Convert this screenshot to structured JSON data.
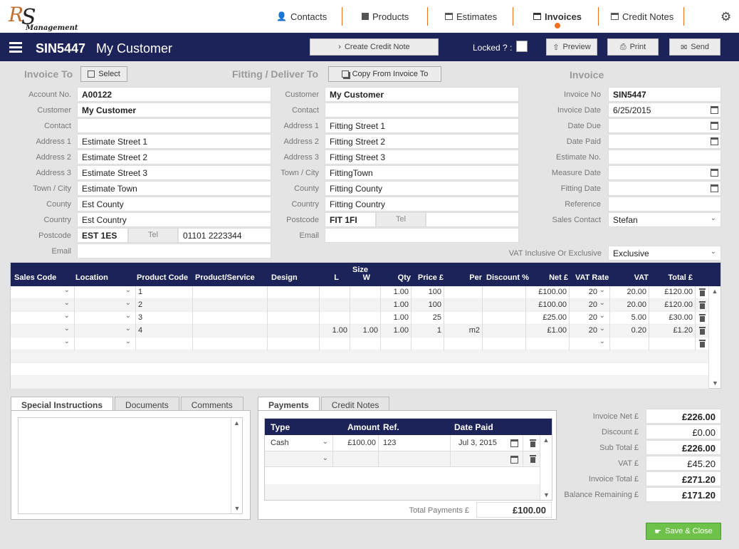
{
  "nav": {
    "items": [
      {
        "label": "Contacts"
      },
      {
        "label": "Products"
      },
      {
        "label": "Estimates"
      },
      {
        "label": "Invoices"
      },
      {
        "label": "Credit Notes"
      }
    ],
    "active_color": "#f07020"
  },
  "logo": {
    "letters": "RS",
    "sub": "Management"
  },
  "titlebar": {
    "doc_no": "SIN5447",
    "customer": "My Customer",
    "create_credit_note": "Create Credit Note",
    "locked_label": "Locked ? :",
    "preview": "Preview",
    "print": "Print",
    "send": "Send",
    "bg_color": "#1c2358"
  },
  "invoice_to": {
    "heading": "Invoice To",
    "select_btn": "Select",
    "fields": [
      {
        "label": "Account No.",
        "value": "A00122"
      },
      {
        "label": "Customer",
        "value": "My Customer"
      },
      {
        "label": "Contact",
        "value": ""
      },
      {
        "label": "Address 1",
        "value": "Estimate Street 1"
      },
      {
        "label": "Address 2",
        "value": "Estimate Street 2"
      },
      {
        "label": "Address 3",
        "value": "Estimate Street 3"
      },
      {
        "label": "Town / City",
        "value": "Estimate Town"
      },
      {
        "label": "County",
        "value": "Est County"
      },
      {
        "label": "Country",
        "value": "Est Country"
      }
    ],
    "postcode_label": "Postcode",
    "postcode": "EST 1ES",
    "tel_label": "Tel",
    "tel": "01101 2223344",
    "email_label": "Email",
    "email": ""
  },
  "fitting": {
    "heading": "Fitting / Deliver To",
    "copy_btn": "Copy From Invoice To",
    "fields": [
      {
        "label": "Customer",
        "value": "My Customer"
      },
      {
        "label": "Contact",
        "value": ""
      },
      {
        "label": "Address 1",
        "value": "Fitting Street 1"
      },
      {
        "label": "Address 2",
        "value": "Fitting Street 2"
      },
      {
        "label": "Address 3",
        "value": "Fitting Street 3"
      },
      {
        "label": "Town / City",
        "value": "FittingTown"
      },
      {
        "label": "County",
        "value": "Fitting County"
      },
      {
        "label": "Country",
        "value": "Fitting Country"
      }
    ],
    "postcode_label": "Postcode",
    "postcode": "FIT 1FI",
    "tel_label": "Tel",
    "tel": "",
    "email_label": "Email",
    "email": ""
  },
  "invoice": {
    "heading": "Invoice",
    "fields": [
      {
        "label": "Invoice No",
        "value": "SIN5447"
      },
      {
        "label": "Invoice Date",
        "value": "6/25/2015"
      },
      {
        "label": "Date Due",
        "value": ""
      },
      {
        "label": "Date Paid",
        "value": ""
      },
      {
        "label": "Estimate No.",
        "value": ""
      },
      {
        "label": "Measure Date",
        "value": ""
      },
      {
        "label": "Fitting Date",
        "value": ""
      },
      {
        "label": "Reference",
        "value": ""
      },
      {
        "label": "Sales Contact",
        "value": "Stefan"
      }
    ],
    "vat_label": "VAT Inclusive Or Exclusive",
    "vat_value": "Exclusive"
  },
  "grid": {
    "size_label": "Size",
    "headers": [
      "Sales Code",
      "Location",
      "Product Code",
      "Product/Service",
      "Design",
      "L",
      "W",
      "Qty",
      "Price £",
      "Per",
      "Discount %",
      "Net £",
      "VAT Rate",
      "VAT",
      "Total £"
    ],
    "rows": [
      {
        "product_code": "1",
        "l": "",
        "w": "",
        "qty": "1.00",
        "price": "100",
        "per": "",
        "net": "£100.00",
        "vat_rate": "20",
        "vat": "20.00",
        "total": "£120.00"
      },
      {
        "product_code": "2",
        "l": "",
        "w": "",
        "qty": "1.00",
        "price": "100",
        "per": "",
        "net": "£100.00",
        "vat_rate": "20",
        "vat": "20.00",
        "total": "£120.00"
      },
      {
        "product_code": "3",
        "l": "",
        "w": "",
        "qty": "1.00",
        "price": "25",
        "per": "",
        "net": "£25.00",
        "vat_rate": "20",
        "vat": "5.00",
        "total": "£30.00"
      },
      {
        "product_code": "4",
        "l": "1.00",
        "w": "1.00",
        "qty": "1.00",
        "price": "1",
        "per": "m2",
        "net": "£1.00",
        "vat_rate": "20",
        "vat": "0.20",
        "total": "£1.20"
      },
      {
        "product_code": "",
        "l": "",
        "w": "",
        "qty": "",
        "price": "",
        "per": "",
        "net": "",
        "vat_rate": "",
        "vat": "",
        "total": ""
      }
    ]
  },
  "notes_tabs": {
    "tabs": [
      "Special Instructions",
      "Documents",
      "Comments"
    ]
  },
  "payments": {
    "tabs": [
      "Payments",
      "Credit Notes"
    ],
    "headers": [
      "Type",
      "Amount",
      "Ref.",
      "Date Paid"
    ],
    "rows": [
      {
        "type": "Cash",
        "amount": "£100.00",
        "ref": "123",
        "date": "Jul 3, 2015"
      },
      {
        "type": "",
        "amount": "",
        "ref": "",
        "date": ""
      }
    ],
    "total_label": "Total Payments £",
    "total_value": "£100.00"
  },
  "totals": [
    {
      "label": "Invoice Net £",
      "value": "£226.00",
      "bold": true
    },
    {
      "label": "Discount £",
      "value": "£0.00",
      "bold": false
    },
    {
      "label": "Sub Total £",
      "value": "£226.00",
      "bold": true
    },
    {
      "label": "VAT £",
      "value": "£45.20",
      "bold": false
    },
    {
      "label": "Invoice Total £",
      "value": "£271.20",
      "bold": true
    },
    {
      "label": "Balance Remaining £",
      "value": "£171.20",
      "bold": true
    }
  ],
  "save_btn": "Save & Close"
}
